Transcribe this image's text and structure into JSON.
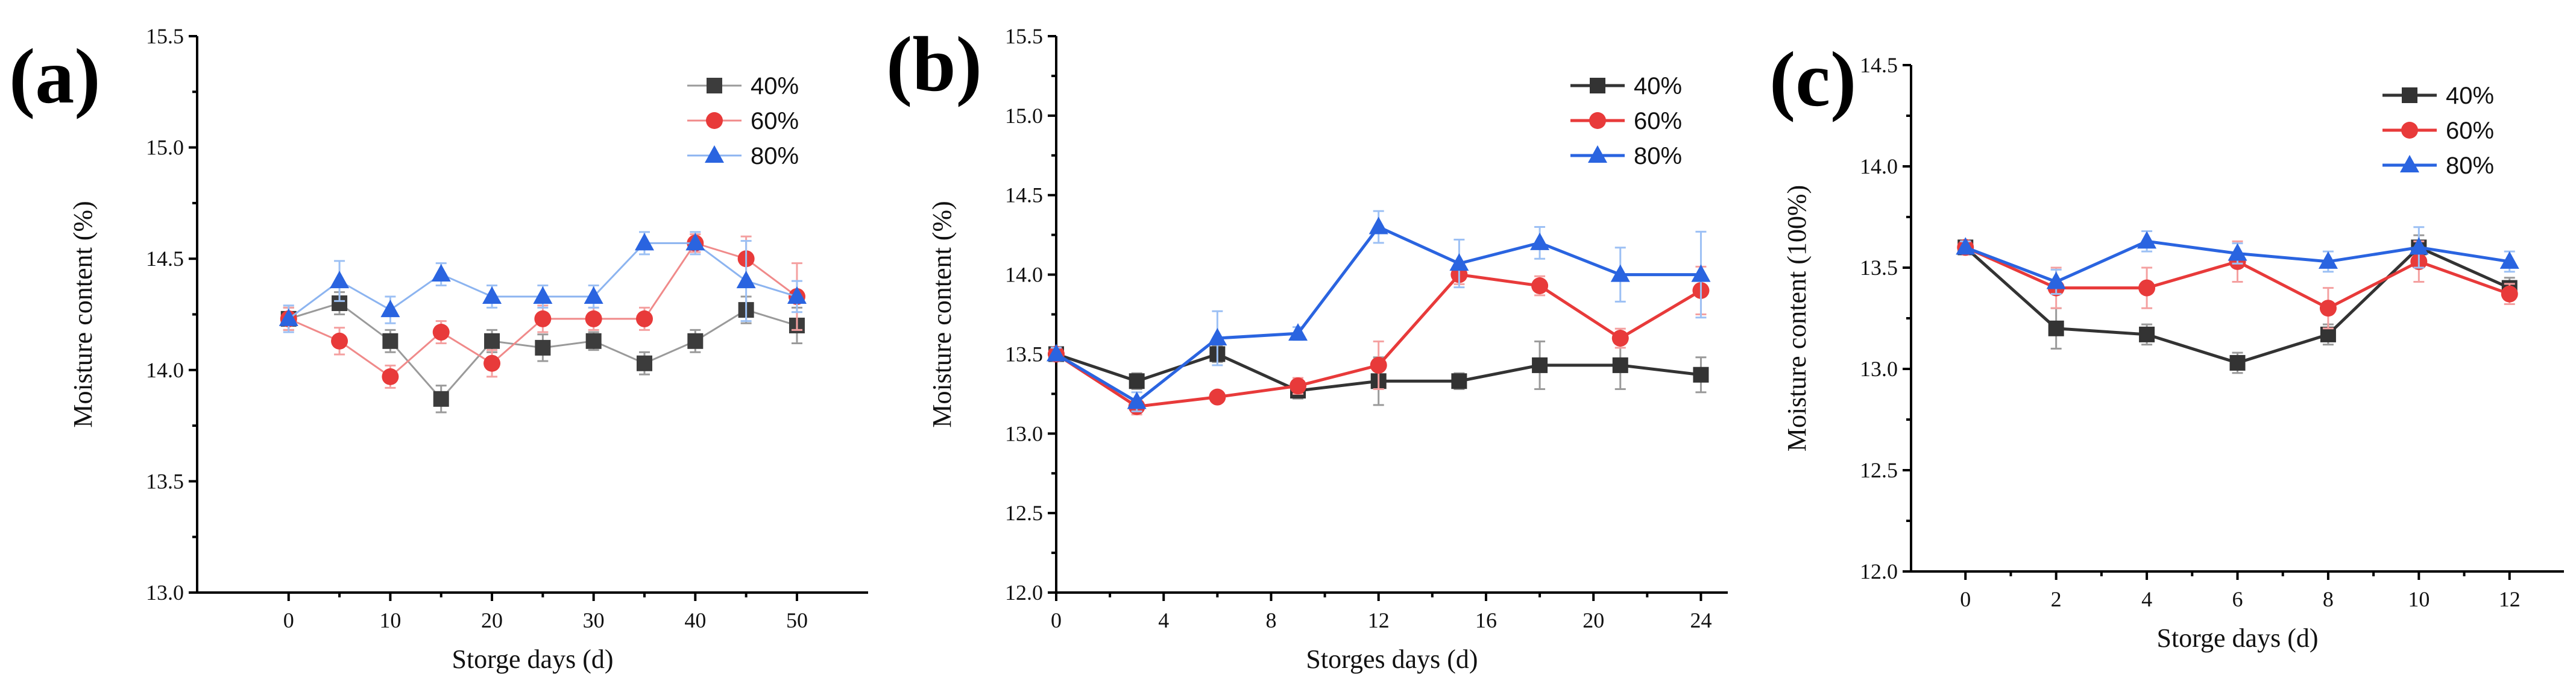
{
  "chart_data": [
    {
      "type": "line",
      "panel_label": "(a)",
      "xlabel": "Storge days (d)",
      "ylabel": "Moisture content (%)",
      "xlim": [
        -9,
        57
      ],
      "ylim": [
        13.0,
        15.5
      ],
      "xticks": [
        0,
        10,
        20,
        30,
        40,
        50
      ],
      "yticks": [
        13.0,
        13.5,
        14.0,
        14.5,
        15.0,
        15.5
      ],
      "ytick_labels": [
        "13.0",
        "13.5",
        "14.0",
        "14.5",
        "15.0",
        "15.5"
      ],
      "x": [
        0,
        5,
        10,
        15,
        20,
        25,
        30,
        35,
        40,
        45,
        50
      ],
      "series": [
        {
          "name": "40%",
          "color": "#9a9a9a",
          "marker_color": "#3c3c3c",
          "marker": "square",
          "values": [
            14.23,
            14.3,
            14.13,
            13.87,
            14.13,
            14.1,
            14.13,
            14.03,
            14.13,
            14.27,
            14.2
          ],
          "errors": [
            0.05,
            0.05,
            0.05,
            0.06,
            0.05,
            0.06,
            0.04,
            0.05,
            0.05,
            0.06,
            0.08
          ]
        },
        {
          "name": "60%",
          "color": "#f08a8a",
          "marker_color": "#e83a3a",
          "marker": "circle",
          "values": [
            14.23,
            14.13,
            13.97,
            14.17,
            14.03,
            14.23,
            14.23,
            14.23,
            14.57,
            14.5,
            14.33
          ],
          "errors": [
            0.05,
            0.06,
            0.05,
            0.05,
            0.06,
            0.06,
            0.05,
            0.05,
            0.04,
            0.1,
            0.15
          ]
        },
        {
          "name": "80%",
          "color": "#8cb4f0",
          "marker_color": "#2a64e0",
          "marker": "triangle",
          "values": [
            14.23,
            14.4,
            14.27,
            14.43,
            14.33,
            14.33,
            14.33,
            14.57,
            14.57,
            14.4,
            14.33
          ],
          "errors": [
            0.06,
            0.09,
            0.06,
            0.05,
            0.05,
            0.05,
            0.05,
            0.05,
            0.05,
            0.18,
            0.07
          ]
        }
      ]
    },
    {
      "type": "line",
      "panel_label": "(b)",
      "xlabel": "Storges days (d)",
      "ylabel": "Moisture content (%)",
      "xlim": [
        0,
        25
      ],
      "ylim": [
        12.0,
        15.5
      ],
      "xticks": [
        0,
        4,
        8,
        12,
        16,
        20,
        24
      ],
      "yticks": [
        12.0,
        12.5,
        13.0,
        13.5,
        14.0,
        14.5,
        15.0,
        15.5
      ],
      "ytick_labels": [
        "12.0",
        "12.5",
        "13.0",
        "13.5",
        "14.0",
        "14.5",
        "15.0",
        "15.5"
      ],
      "x": [
        0,
        3,
        6,
        9,
        12,
        15,
        18,
        21,
        24
      ],
      "series": [
        {
          "name": "40%",
          "color": "#333333",
          "marker_color": "#333333",
          "marker": "square",
          "values": [
            13.5,
            13.33,
            13.5,
            13.27,
            13.33,
            13.33,
            13.43,
            13.43,
            13.37
          ],
          "errors": [
            0.04,
            0.05,
            0.05,
            0.05,
            0.15,
            0.05,
            0.15,
            0.15,
            0.11
          ]
        },
        {
          "name": "60%",
          "color": "#e83a3a",
          "marker_color": "#e83a3a",
          "marker": "circle",
          "values": [
            13.5,
            13.17,
            13.23,
            13.3,
            13.43,
            14.0,
            13.93,
            13.6,
            13.9
          ],
          "errors": [
            0.04,
            0.05,
            0.03,
            0.05,
            0.15,
            0.06,
            0.06,
            0.06,
            0.15
          ]
        },
        {
          "name": "80%",
          "color": "#2a64e0",
          "marker_color": "#2a64e0",
          "marker": "triangle",
          "values": [
            13.5,
            13.2,
            13.6,
            13.63,
            14.3,
            14.07,
            14.2,
            14.0,
            14.0
          ],
          "errors": [
            0.04,
            0.06,
            0.17,
            0.04,
            0.1,
            0.15,
            0.1,
            0.17,
            0.27
          ]
        }
      ]
    },
    {
      "type": "line",
      "panel_label": "(c)",
      "xlabel": "Storge days (d)",
      "ylabel": "Moisture content (100%)",
      "xlim": [
        -1.2,
        13.2
      ],
      "ylim": [
        12.0,
        14.5
      ],
      "xticks": [
        0,
        2,
        4,
        6,
        8,
        10,
        12
      ],
      "yticks": [
        12.0,
        12.5,
        13.0,
        13.5,
        14.0,
        14.5
      ],
      "ytick_labels": [
        "12.0",
        "12.5",
        "13.0",
        "13.5",
        "14.0",
        "14.5"
      ],
      "x": [
        0,
        2,
        4,
        6,
        8,
        10,
        12
      ],
      "series": [
        {
          "name": "40%",
          "color": "#333333",
          "marker_color": "#333333",
          "marker": "square",
          "values": [
            13.6,
            13.2,
            13.17,
            13.03,
            13.17,
            13.6,
            13.4
          ],
          "errors": [
            0.03,
            0.1,
            0.05,
            0.05,
            0.05,
            0.06,
            0.05
          ]
        },
        {
          "name": "60%",
          "color": "#e83a3a",
          "marker_color": "#e83a3a",
          "marker": "circle",
          "values": [
            13.6,
            13.4,
            13.4,
            13.53,
            13.3,
            13.53,
            13.37
          ],
          "errors": [
            0.03,
            0.1,
            0.1,
            0.1,
            0.1,
            0.1,
            0.05
          ]
        },
        {
          "name": "80%",
          "color": "#2a64e0",
          "marker_color": "#2a64e0",
          "marker": "triangle",
          "values": [
            13.6,
            13.43,
            13.63,
            13.57,
            13.53,
            13.6,
            13.53
          ],
          "errors": [
            0.03,
            0.06,
            0.05,
            0.05,
            0.05,
            0.1,
            0.05
          ]
        }
      ]
    }
  ]
}
